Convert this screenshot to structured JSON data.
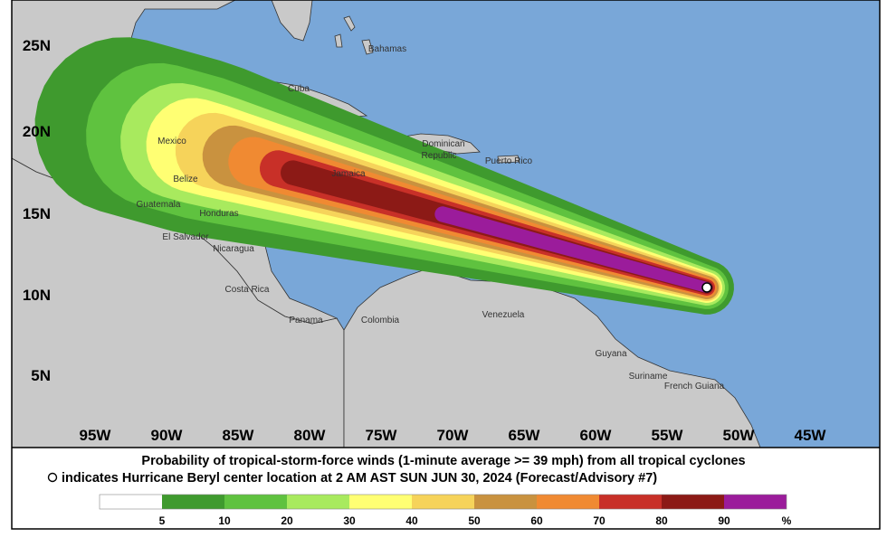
{
  "map": {
    "lat_labels": [
      "25N",
      "20N",
      "15N",
      "10N",
      "5N"
    ],
    "lon_labels": [
      "95W",
      "90W",
      "85W",
      "80W",
      "75W",
      "70W",
      "65W",
      "60W",
      "55W",
      "50W",
      "45W"
    ],
    "places": [
      "Bahamas",
      "Cuba",
      "Mexico",
      "Dominican",
      "Republic",
      "Puerto Rico",
      "Jamaica",
      "Belize",
      "Guatemala",
      "Honduras",
      "El Salvador",
      "Nicaragua",
      "Costa Rica",
      "Panama",
      "Colombia",
      "Venezuela",
      "Guyana",
      "Suriname",
      "French Guiana"
    ]
  },
  "caption": {
    "line1": "Probability of tropical-storm-force winds (1-minute average >= 39 mph) from all tropical cyclones",
    "line2": "indicates Hurricane Beryl center location at 2 AM AST SUN JUN 30, 2024 (Forecast/Advisory #7)"
  },
  "legend": {
    "colors": [
      "#ffffff",
      "#3f9a2e",
      "#5fc23f",
      "#a8ea5e",
      "#ffff73",
      "#f6d35a",
      "#c9923f",
      "#f08a32",
      "#c83028",
      "#8c1a16",
      "#9b1c9b"
    ],
    "thresholds": [
      5,
      10,
      20,
      30,
      40,
      50,
      60,
      70,
      80,
      90
    ],
    "unit": "%"
  }
}
